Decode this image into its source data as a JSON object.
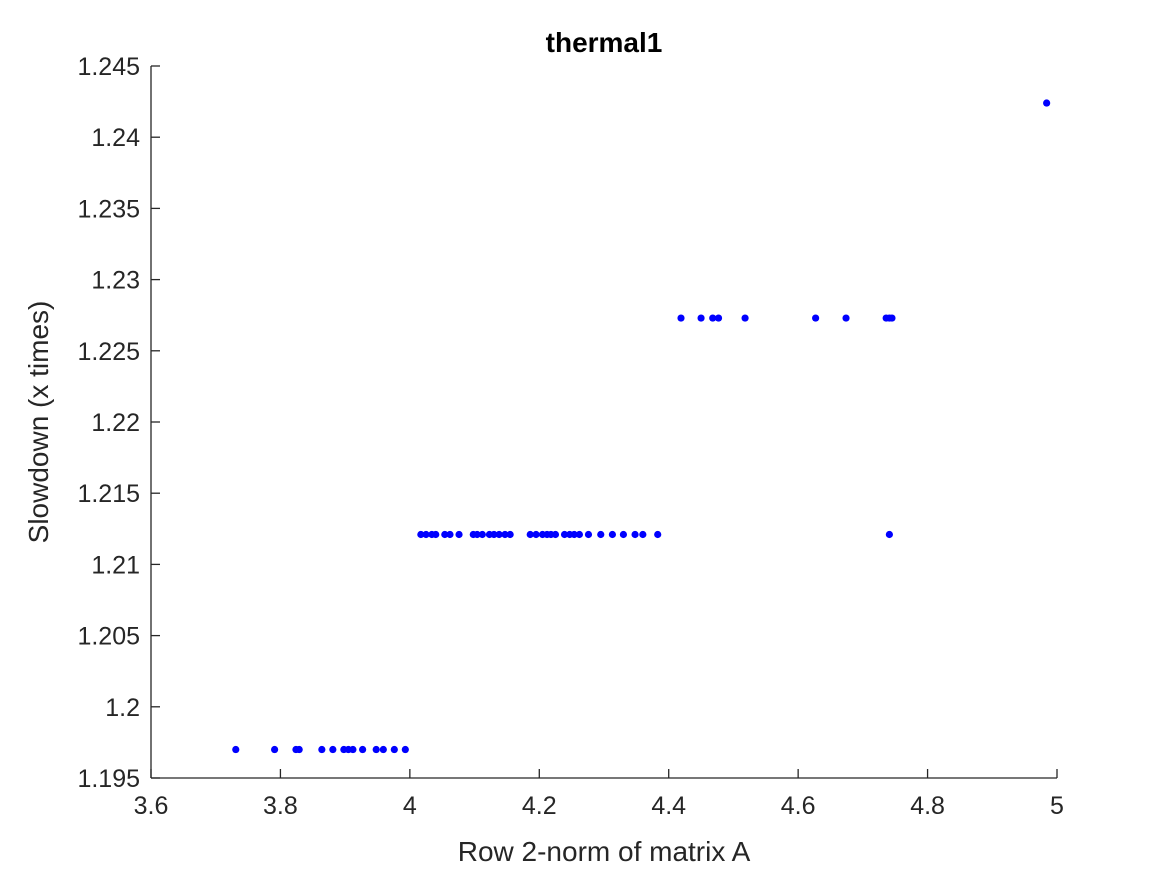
{
  "chart_data": {
    "type": "scatter",
    "title": "thermal1",
    "xlabel": "Row 2-norm of matrix A",
    "ylabel": "Slowdown (x times)",
    "xlim": [
      3.6,
      5.0
    ],
    "ylim": [
      1.195,
      1.245
    ],
    "xticks": [
      3.6,
      3.8,
      4.0,
      4.2,
      4.4,
      4.6,
      4.8,
      5.0
    ],
    "xtick_labels": [
      "3.6",
      "3.8",
      "4",
      "4.2",
      "4.4",
      "4.6",
      "4.8",
      "5"
    ],
    "yticks": [
      1.195,
      1.2,
      1.205,
      1.21,
      1.215,
      1.22,
      1.225,
      1.23,
      1.235,
      1.24,
      1.245
    ],
    "ytick_labels": [
      "1.195",
      "1.2",
      "1.205",
      "1.21",
      "1.215",
      "1.22",
      "1.225",
      "1.23",
      "1.235",
      "1.24",
      "1.245"
    ],
    "grid": false,
    "marker_color": "#0000ff",
    "series": [
      {
        "points": [
          [
            3.731,
            1.197
          ],
          [
            3.791,
            1.197
          ],
          [
            3.824,
            1.197
          ],
          [
            3.829,
            1.197
          ],
          [
            3.864,
            1.197
          ],
          [
            3.881,
            1.197
          ],
          [
            3.898,
            1.197
          ],
          [
            3.905,
            1.197
          ],
          [
            3.912,
            1.197
          ],
          [
            3.927,
            1.197
          ],
          [
            3.948,
            1.197
          ],
          [
            3.959,
            1.197
          ],
          [
            3.976,
            1.197
          ],
          [
            3.993,
            1.197
          ],
          [
            4.017,
            1.2121
          ],
          [
            4.025,
            1.2121
          ],
          [
            4.034,
            1.2121
          ],
          [
            4.04,
            1.2121
          ],
          [
            4.054,
            1.2121
          ],
          [
            4.062,
            1.2121
          ],
          [
            4.076,
            1.2121
          ],
          [
            4.098,
            1.2121
          ],
          [
            4.104,
            1.2121
          ],
          [
            4.112,
            1.2121
          ],
          [
            4.123,
            1.2121
          ],
          [
            4.13,
            1.2121
          ],
          [
            4.138,
            1.2121
          ],
          [
            4.147,
            1.2121
          ],
          [
            4.155,
            1.2121
          ],
          [
            4.186,
            1.2121
          ],
          [
            4.195,
            1.2121
          ],
          [
            4.205,
            1.2121
          ],
          [
            4.212,
            1.2121
          ],
          [
            4.218,
            1.2121
          ],
          [
            4.225,
            1.2121
          ],
          [
            4.239,
            1.2121
          ],
          [
            4.247,
            1.2121
          ],
          [
            4.254,
            1.2121
          ],
          [
            4.262,
            1.2121
          ],
          [
            4.276,
            1.2121
          ],
          [
            4.295,
            1.2121
          ],
          [
            4.313,
            1.2121
          ],
          [
            4.33,
            1.2121
          ],
          [
            4.348,
            1.2121
          ],
          [
            4.36,
            1.2121
          ],
          [
            4.383,
            1.2121
          ],
          [
            4.741,
            1.2121
          ],
          [
            4.419,
            1.2273
          ],
          [
            4.45,
            1.2273
          ],
          [
            4.468,
            1.2273
          ],
          [
            4.477,
            1.2273
          ],
          [
            4.518,
            1.2273
          ],
          [
            4.627,
            1.2273
          ],
          [
            4.674,
            1.2273
          ],
          [
            4.736,
            1.2273
          ],
          [
            4.741,
            1.2273
          ],
          [
            4.745,
            1.2273
          ],
          [
            4.984,
            1.2424
          ]
        ]
      }
    ]
  }
}
